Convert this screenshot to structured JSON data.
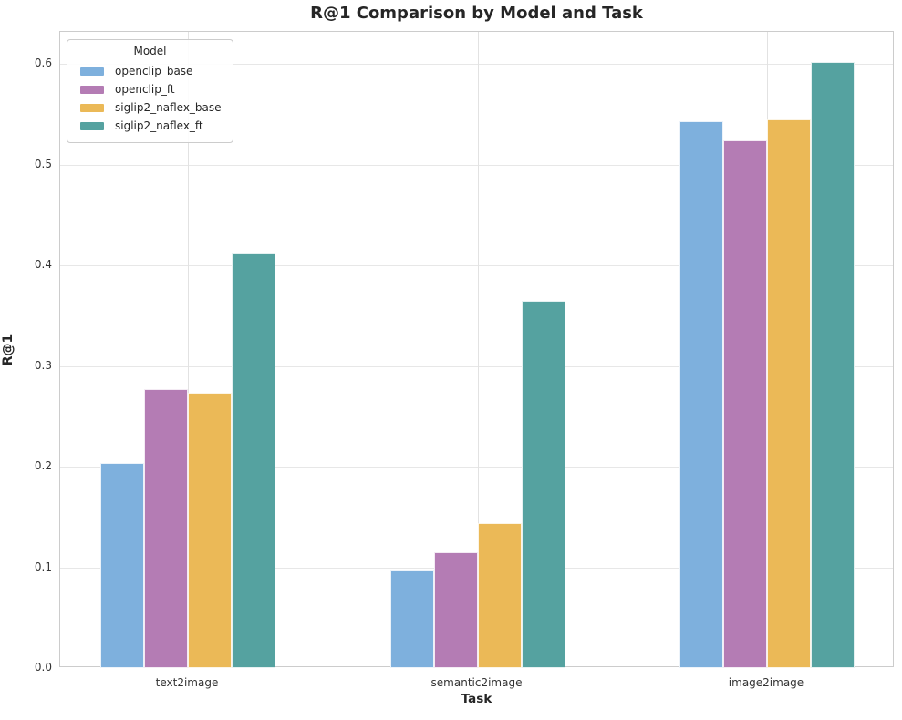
{
  "chart_data": {
    "type": "bar",
    "title": "R@1 Comparison by Model and Task",
    "xlabel": "Task",
    "ylabel": "R@1",
    "categories": [
      "text2image",
      "semantic2image",
      "image2image"
    ],
    "series": [
      {
        "name": "openclip_base",
        "color": "#7EB0DD",
        "values": [
          0.204,
          0.098,
          0.543
        ]
      },
      {
        "name": "openclip_ft",
        "color": "#B47CB4",
        "values": [
          0.277,
          0.115,
          0.524
        ]
      },
      {
        "name": "siglip2_naflex_base",
        "color": "#EBB957",
        "values": [
          0.273,
          0.144,
          0.545
        ]
      },
      {
        "name": "siglip2_naflex_ft",
        "color": "#55A2A0",
        "values": [
          0.412,
          0.365,
          0.602
        ]
      }
    ],
    "legend": {
      "title": "Model",
      "position": "upper left"
    },
    "ylim": [
      0,
      0.632
    ],
    "yticks": [
      "0.0",
      "0.1",
      "0.2",
      "0.3",
      "0.4",
      "0.5",
      "0.6"
    ],
    "grid": true,
    "colors": {
      "grid": "#E7E7E7",
      "spine": "#CCCCCC",
      "text": "#262626",
      "background": "#FFFFFF"
    }
  }
}
